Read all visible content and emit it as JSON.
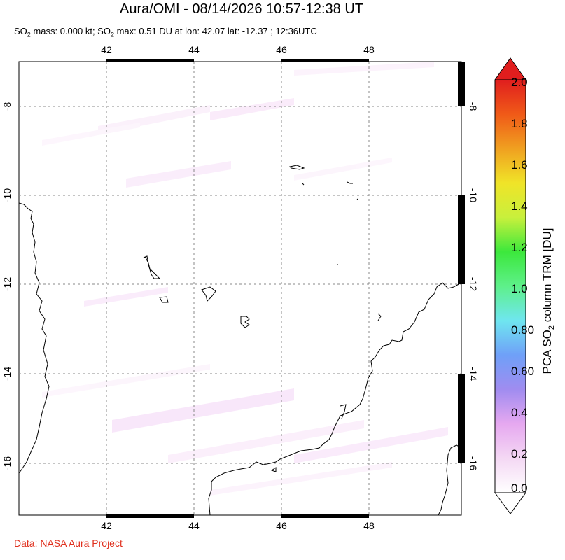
{
  "title": "Aura/OMI - 08/14/2026 10:57-12:38 UT",
  "subtitle": {
    "part1": "SO",
    "sub1": "2",
    "part2": " mass: 0.000 kt; SO",
    "sub2": "2",
    "part3": " max: 0.51 DU at lon: 42.07 lat: -12.37 ; 12:36UTC"
  },
  "credit": "Data: NASA Aura Project",
  "map": {
    "lon_ticks": [
      "42",
      "44",
      "46",
      "48"
    ],
    "lat_ticks": [
      "-8",
      "-10",
      "-12",
      "-14",
      "-16"
    ],
    "grid": true
  },
  "colorbar": {
    "title_pre": "PCA SO",
    "title_sub": "2",
    "title_post": " column TRM [DU]",
    "labels": [
      "2.0",
      "1.8",
      "1.6",
      "1.4",
      "1.2",
      "1.0",
      "0.80",
      "0.60",
      "0.4",
      "0.2",
      "0.0"
    ],
    "colors": [
      "#ffffff",
      "#f4d8f4",
      "#e6a8f0",
      "#a08cf0",
      "#6fa0f8",
      "#6fe6f0",
      "#5ef08a",
      "#3ce83c",
      "#c8f03c",
      "#f0e428",
      "#f0a020",
      "#f05a18",
      "#e01e1e"
    ],
    "top_arrow_color": "#e01e1e",
    "bottom_arrow_color": "#ffffff"
  }
}
